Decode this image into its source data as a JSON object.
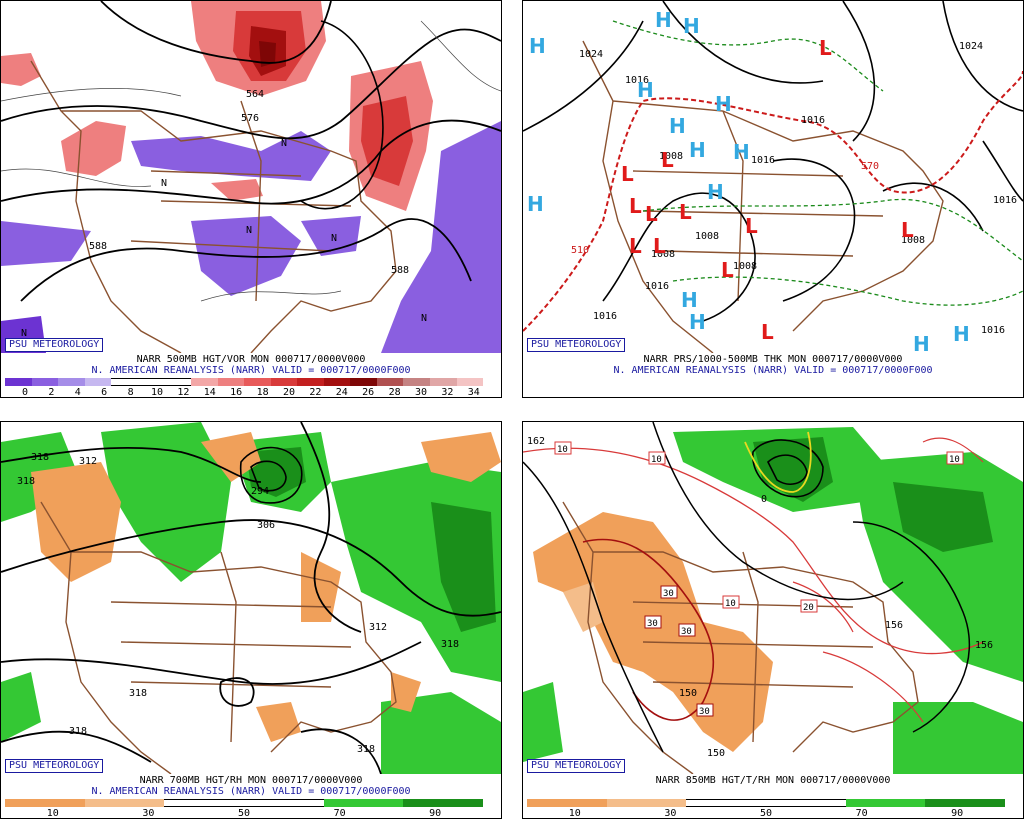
{
  "org_badge": "PSU METEOROLOGY",
  "reanalysis_line": "N. AMERICAN REANALYSIS (NARR) VALID = 000717/0000F000",
  "panels": {
    "p1": {
      "title": "NARR 500MB HGT/VOR MON 000717/0000V000",
      "scale_ticks": [
        "0",
        "2",
        "4",
        "6",
        "8",
        "10",
        "12",
        "14",
        "16",
        "18",
        "20",
        "22",
        "24",
        "26",
        "28",
        "30",
        "32",
        "34"
      ],
      "scale_colors": [
        "#6c33d2",
        "#8a5fe0",
        "#a58de8",
        "#c6b8f0",
        "#ffffff",
        "#ffffff",
        "#ffffff",
        "#f3a7a7",
        "#ee7f7f",
        "#e85a5a",
        "#d83a3a",
        "#c31f1f",
        "#a30f0f",
        "#7e0606",
        "#b05050",
        "#c58383",
        "#e0a6a6",
        "#f4c4c4"
      ],
      "contour_labels": [
        "564",
        "576",
        "588",
        "588",
        "N",
        "N",
        "N",
        "N",
        "N",
        "N"
      ]
    },
    "p2": {
      "title": "NARR PRS/1000-500MB THK MON 000717/0000V000",
      "pressure_labels": [
        "1024",
        "1016",
        "1024",
        "1016",
        "1016",
        "1008",
        "1008",
        "1008",
        "1016",
        "1016",
        "1008",
        "1008",
        "1016",
        "1016"
      ],
      "thickness_labels": [
        "510",
        "570"
      ],
      "highs": [
        "H",
        "H",
        "H",
        "H",
        "H",
        "H",
        "H",
        "H",
        "H",
        "H",
        "H",
        "H",
        "H",
        "H"
      ],
      "lows": [
        "L",
        "L",
        "L",
        "L",
        "L",
        "L",
        "L",
        "L",
        "L",
        "L",
        "L",
        "L"
      ]
    },
    "p3": {
      "title": "NARR 700MB HGT/RH MON 000717/0000V000",
      "scale_ticks": [
        "10",
        "30",
        "50",
        "70",
        "90"
      ],
      "scale_colors": [
        "#f0a05a",
        "#f4bd8a",
        "#ffffff",
        "#ffffff",
        "#34c834",
        "#1a8f1a"
      ],
      "contour_labels": [
        "318",
        "312",
        "318",
        "294",
        "306",
        "312",
        "318",
        "318",
        "318",
        "318"
      ]
    },
    "p4": {
      "title": "NARR 850MB HGT/T/RH MON 000717/0000V000",
      "scale_ticks": [
        "10",
        "30",
        "50",
        "70",
        "90"
      ],
      "scale_colors": [
        "#f0a05a",
        "#f4bd8a",
        "#ffffff",
        "#ffffff",
        "#34c834",
        "#1a8f1a"
      ],
      "contour_labels": [
        "162",
        "156",
        "150",
        "150",
        "156",
        "0"
      ],
      "temp_labels": [
        "10",
        "10",
        "10",
        "30",
        "30",
        "30",
        "30",
        "20",
        "10"
      ]
    }
  }
}
